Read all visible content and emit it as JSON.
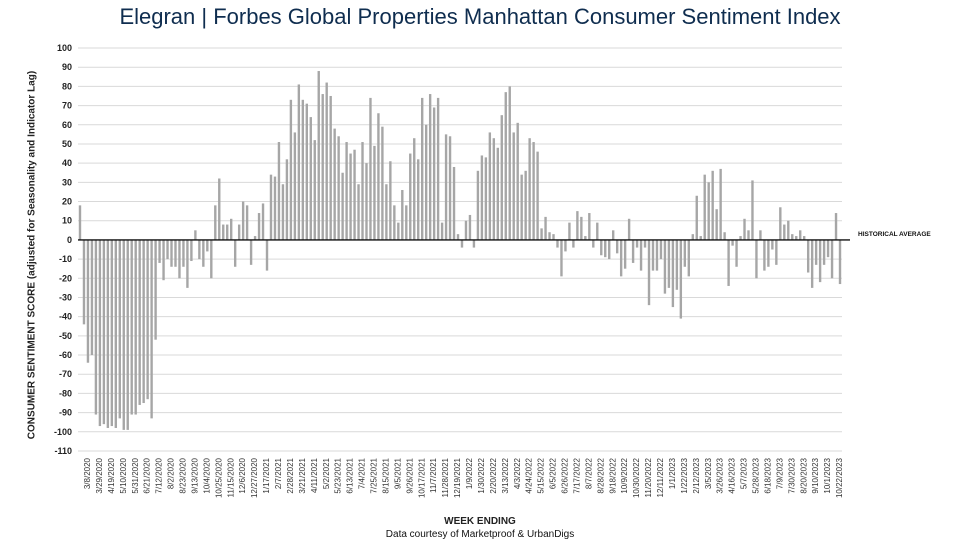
{
  "page": {
    "title_brand": "Elegran | Forbes Global Properties",
    "title_rest": "Manhattan Consumer Sentiment Index",
    "credit": "Data courtesy of Marketproof & UrbanDigs"
  },
  "chart_data": {
    "type": "bar",
    "title": "Elegran | Forbes Global Properties Manhattan Consumer Sentiment Index",
    "xlabel": "WEEK ENDING",
    "ylabel": "CONSUMER SENTIMENT SCORE (adjusted for Seasonality and Indicator Lag)",
    "ylim": [
      -110,
      100
    ],
    "yticks": [
      100,
      90,
      80,
      70,
      60,
      50,
      40,
      30,
      20,
      10,
      0,
      -10,
      -20,
      -30,
      -40,
      -50,
      -60,
      -70,
      -80,
      -90,
      -100,
      -110
    ],
    "grid": true,
    "baseline_label": "HISTORICAL AVERAGE",
    "bar_color": "#a6a6a6",
    "x_tick_labels": [
      "3/8/2020",
      "3/29/2020",
      "4/19/2020",
      "5/10/2020",
      "5/31/2020",
      "6/21/2020",
      "7/12/2020",
      "8/2/2020",
      "8/23/2020",
      "9/13/2020",
      "10/4/2020",
      "10/25/2020",
      "11/15/2020",
      "12/6/2020",
      "12/27/2020",
      "1/17/2021",
      "2/7/2021",
      "2/28/2021",
      "3/21/2021",
      "4/11/2021",
      "5/2/2021",
      "5/23/2021",
      "6/13/2021",
      "7/4/2021",
      "7/25/2021",
      "8/15/2021",
      "9/5/2021",
      "9/26/2021",
      "10/17/2021",
      "11/7/2021",
      "11/28/2021",
      "12/19/2021",
      "1/9/2022",
      "1/30/2022",
      "2/20/2022",
      "3/13/2022",
      "4/3/2022",
      "4/24/2022",
      "5/15/2022",
      "6/5/2022",
      "6/26/2022",
      "7/17/2022",
      "8/7/2022",
      "8/28/2022",
      "9/18/2022",
      "10/9/2022",
      "10/30/2022",
      "11/20/2022",
      "12/11/2022",
      "1/1/2023",
      "1/22/2023",
      "2/12/2023",
      "3/5/2023",
      "3/26/2023",
      "4/16/2023",
      "5/7/2023",
      "5/28/2023",
      "6/18/2023",
      "7/9/2023",
      "7/30/2023",
      "8/20/2023",
      "9/10/2023",
      "10/1/2023",
      "10/22/2023"
    ],
    "values": [
      18,
      -44,
      -64,
      -60,
      -91,
      -97,
      -96,
      -98,
      -97,
      -98,
      -93,
      -99,
      -99,
      -91,
      -91,
      -86,
      -85,
      -83,
      -93,
      -52,
      -12,
      -21,
      -10,
      -14,
      -14,
      -20,
      -14,
      -25,
      -11,
      5,
      -10,
      -14,
      -6,
      -20,
      18,
      32,
      8,
      8,
      11,
      -14,
      8,
      20,
      18,
      -13,
      2,
      14,
      19,
      -16,
      34,
      33,
      51,
      29,
      42,
      73,
      56,
      81,
      73,
      71,
      64,
      52,
      88,
      76,
      82,
      75,
      58,
      54,
      35,
      51,
      45,
      47,
      29,
      51,
      40,
      74,
      49,
      66,
      59,
      29,
      41,
      18,
      9,
      26,
      18,
      45,
      53,
      42,
      74,
      60,
      76,
      69,
      74,
      9,
      55,
      54,
      38,
      3,
      -4,
      10,
      13,
      -4,
      36,
      44,
      43,
      56,
      53,
      48,
      65,
      77,
      80,
      56,
      61,
      34,
      36,
      53,
      51,
      46,
      6,
      12,
      4,
      3,
      -4,
      -19,
      -6,
      9,
      -4,
      15,
      12,
      2,
      14,
      -4,
      9,
      -8,
      -9,
      -10,
      5,
      -7,
      -19,
      -15,
      11,
      -12,
      -4,
      -16,
      -4,
      -34,
      -16,
      -16,
      -10,
      -28,
      -25,
      -35,
      -26,
      -41,
      -14,
      -19,
      3,
      23,
      2,
      34,
      30,
      36,
      16,
      37,
      4,
      -24,
      -3,
      -14,
      2,
      11,
      5,
      31,
      -20,
      5,
      -16,
      -14,
      -5,
      -13,
      17,
      8,
      10,
      3,
      2,
      5,
      2,
      -17,
      -25,
      -13,
      -22,
      -13,
      -9,
      -20,
      14,
      -23
    ]
  }
}
